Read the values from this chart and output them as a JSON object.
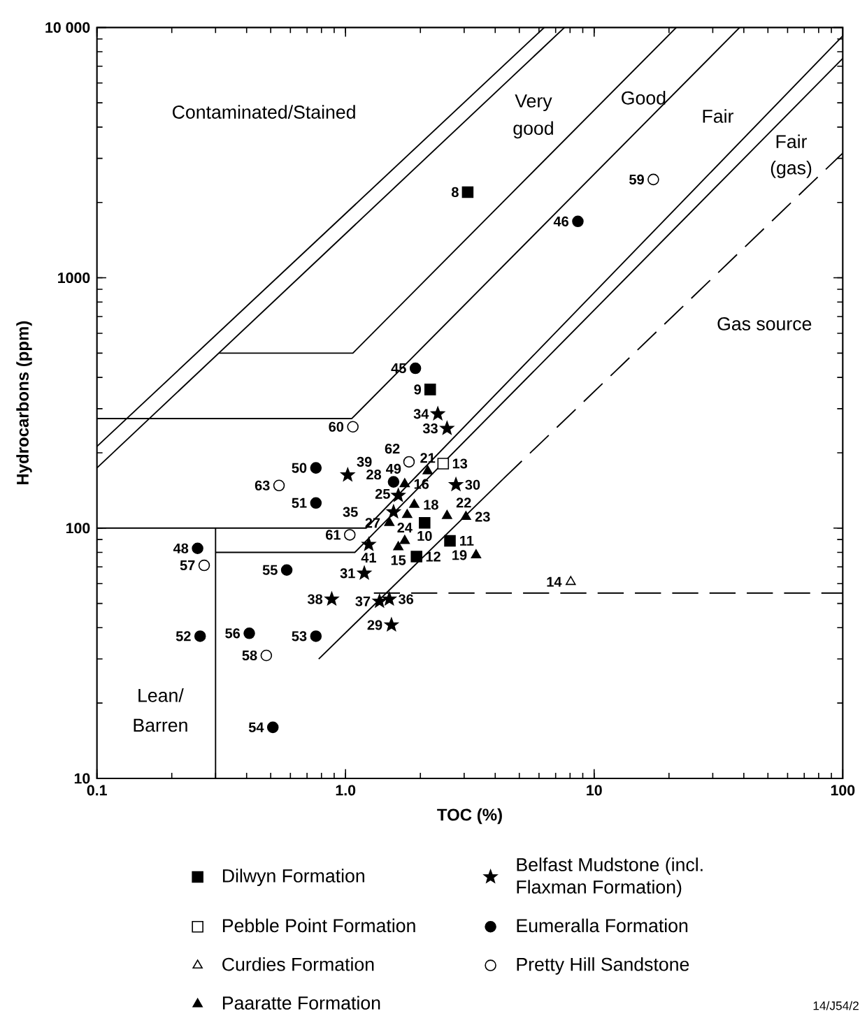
{
  "chart_data": {
    "type": "scatter",
    "xlabel": "TOC (%)",
    "ylabel": "Hydrocarbons (ppm)",
    "log": "xy",
    "legend": "bottom",
    "xlim": [
      0.1,
      100
    ],
    "ylim": [
      10,
      10000
    ],
    "xticks": [
      0.1,
      {
        "value": 1,
        "label": "1.0"
      },
      10,
      100
    ],
    "yticks": [
      10,
      100,
      1000,
      {
        "value": 10000,
        "label": "10 000"
      }
    ],
    "series": [
      {
        "name": "Dilwyn Formation",
        "marker": "square",
        "color": "#000000",
        "x": [
          3.1,
          2.19,
          2.08,
          2.63,
          1.93
        ],
        "values": [
          2200,
          358,
          105,
          89,
          77
        ]
      },
      {
        "name": "Pebble Point Formation",
        "marker": "square",
        "color": "#ffffff",
        "x": [
          2.47
        ],
        "values": [
          181
        ]
      },
      {
        "name": "Curdies Formation",
        "marker": "triangle",
        "color": "#ffffff",
        "x": [
          8.05
        ],
        "values": [
          61
        ]
      },
      {
        "name": "Paaratte Formation",
        "marker": "triangle",
        "color": "#000000",
        "x": [
          1.63,
          1.73,
          1.89,
          3.35,
          2.14,
          2.56,
          3.05,
          1.73,
          1.77,
          1.5
        ],
        "values": [
          84,
          150,
          124,
          78,
          169,
          112,
          111,
          89,
          113,
          105
        ]
      },
      {
        "name": "Belfast Mudstone (incl. Flaxman Formation)",
        "marker": "star",
        "color": "#000000",
        "x": [
          1.63,
          1.53,
          2.78,
          1.19,
          2.56,
          2.35,
          1.56,
          1.5,
          1.37,
          0.88,
          1.02,
          1.24
        ],
        "values": [
          135,
          41,
          149,
          66,
          250,
          286,
          116,
          52,
          51,
          52,
          163,
          86
        ]
      },
      {
        "name": "Eumeralla Formation",
        "marker": "circle",
        "color": "#000000",
        "x": [
          1.91,
          8.6,
          0.254,
          1.56,
          0.76,
          0.76,
          0.26,
          0.76,
          0.51,
          0.58,
          0.41
        ],
        "values": [
          435,
          1680,
          83,
          153,
          174,
          126,
          37,
          37,
          16,
          68,
          38
        ]
      },
      {
        "name": "Pretty Hill Sandstone",
        "marker": "circle",
        "color": "#ffffff",
        "x": [
          0.27,
          0.48,
          17.3,
          1.07,
          1.04,
          1.8,
          0.54
        ],
        "values": [
          71,
          31,
          2470,
          254,
          94,
          184,
          148
        ]
      },
      {
        "type": "line",
        "color": "#000000",
        "line_style": "solid",
        "x": [
          0.1,
          6.3
        ],
        "values": [
          212,
          10000
        ]
      },
      {
        "type": "line",
        "color": "#000000",
        "line_style": "solid",
        "x": [
          0.1,
          7.6
        ],
        "values": [
          174,
          10000
        ]
      },
      {
        "type": "line",
        "color": "#000000",
        "line_style": "solid",
        "x": [
          0.31,
          1.07,
          21.4
        ],
        "values": [
          500,
          500,
          10000
        ]
      },
      {
        "type": "line",
        "color": "#000000",
        "line_style": "solid",
        "x": [
          0.1,
          1.06,
          38.5
        ],
        "values": [
          274,
          274,
          10000
        ]
      },
      {
        "type": "line",
        "color": "#000000",
        "line_style": "solid",
        "x": [
          0.1,
          1.21,
          100
        ],
        "values": [
          100,
          100,
          9250
        ]
      },
      {
        "type": "line",
        "color": "#000000",
        "line_style": "solid",
        "x": [
          0.3,
          1.09,
          100
        ],
        "values": [
          80,
          80,
          7520
        ]
      },
      {
        "type": "line",
        "color": "#000000",
        "line_style": "solid",
        "x": [
          0.3,
          0.3
        ],
        "values": [
          10,
          100
        ]
      },
      {
        "type": "line",
        "color": "#000000",
        "line_style": "solid",
        "x": [
          0.78,
          4.3
        ],
        "values": [
          30,
          157
        ]
      },
      {
        "type": "line",
        "color": "#000000",
        "line_style": "dashed",
        "x": [
          4.3,
          100
        ],
        "values": [
          157,
          3150
        ]
      },
      {
        "type": "line",
        "color": "#000000",
        "line_style": "dashed",
        "x": [
          1.3,
          100
        ],
        "values": [
          55,
          55
        ]
      }
    ],
    "annotations": [
      "Contaminated/Stained",
      "Very",
      "good",
      "Good",
      "Fair",
      "Fair",
      "(gas)",
      "Gas source",
      "Lean/",
      "Barren",
      {
        "text": "8",
        "x": 3.1,
        "y": 2200
      },
      {
        "text": "9",
        "x": 2.19,
        "y": 358
      },
      {
        "text": "10",
        "x": 2.08,
        "y": 105
      },
      {
        "text": "11",
        "x": 2.63,
        "y": 89
      },
      {
        "text": "12",
        "x": 1.93,
        "y": 77
      },
      {
        "text": "13",
        "x": 2.47,
        "y": 181
      },
      {
        "text": "14",
        "x": 8.05,
        "y": 61
      },
      {
        "text": "15",
        "x": 1.63,
        "y": 84
      },
      {
        "text": "16",
        "x": 1.73,
        "y": 150
      },
      {
        "text": "18",
        "x": 1.89,
        "y": 124
      },
      {
        "text": "19",
        "x": 3.35,
        "y": 78
      },
      {
        "text": "21",
        "x": 2.14,
        "y": 169
      },
      {
        "text": "22",
        "x": 2.56,
        "y": 112
      },
      {
        "text": "23",
        "x": 3.05,
        "y": 111
      },
      {
        "text": "24",
        "x": 1.73,
        "y": 89
      },
      {
        "text": "25",
        "x": 1.77,
        "y": 113
      },
      {
        "text": "27",
        "x": 1.5,
        "y": 105
      },
      {
        "text": "28",
        "x": 1.63,
        "y": 135
      },
      {
        "text": "29",
        "x": 1.53,
        "y": 41
      },
      {
        "text": "30",
        "x": 2.78,
        "y": 149
      },
      {
        "text": "31",
        "x": 1.19,
        "y": 66
      },
      {
        "text": "33",
        "x": 2.56,
        "y": 250
      },
      {
        "text": "34",
        "x": 2.35,
        "y": 286
      },
      {
        "text": "35",
        "x": 1.56,
        "y": 116
      },
      {
        "text": "36",
        "x": 1.5,
        "y": 52
      },
      {
        "text": "37",
        "x": 1.37,
        "y": 51
      },
      {
        "text": "38",
        "x": 0.88,
        "y": 52
      },
      {
        "text": "39",
        "x": 1.02,
        "y": 163
      },
      {
        "text": "41",
        "x": 1.24,
        "y": 86
      },
      {
        "text": "45",
        "x": 1.91,
        "y": 435
      },
      {
        "text": "46",
        "x": 8.6,
        "y": 1680
      },
      {
        "text": "48",
        "x": 0.254,
        "y": 83
      },
      {
        "text": "49",
        "x": 1.56,
        "y": 153
      },
      {
        "text": "50",
        "x": 0.76,
        "y": 174
      },
      {
        "text": "51",
        "x": 0.76,
        "y": 126
      },
      {
        "text": "52",
        "x": 0.26,
        "y": 37
      },
      {
        "text": "53",
        "x": 0.76,
        "y": 37
      },
      {
        "text": "54",
        "x": 0.51,
        "y": 16
      },
      {
        "text": "55",
        "x": 0.58,
        "y": 68
      },
      {
        "text": "56",
        "x": 0.41,
        "y": 38
      },
      {
        "text": "57",
        "x": 0.27,
        "y": 71
      },
      {
        "text": "58",
        "x": 0.48,
        "y": 31
      },
      {
        "text": "59",
        "x": 17.3,
        "y": 2470
      },
      {
        "text": "60",
        "x": 1.07,
        "y": 254
      },
      {
        "text": "61",
        "x": 1.04,
        "y": 94
      },
      {
        "text": "62",
        "x": 1.8,
        "y": 184
      },
      {
        "text": "63",
        "x": 0.54,
        "y": 148
      },
      "14/J54/2"
    ]
  }
}
